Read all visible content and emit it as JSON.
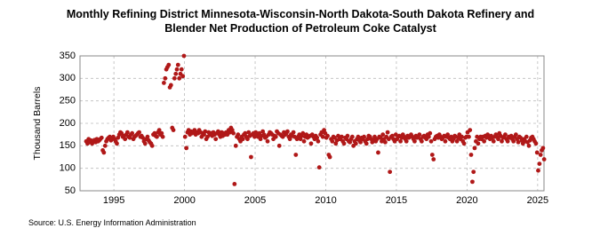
{
  "chart_data": {
    "type": "scatter",
    "title": [
      "Monthly Refining District Minnesota-Wisconsin-North Dakota-South Dakota Refinery and",
      "Blender Net Production of Petroleum Coke Catalyst"
    ],
    "y_label": "Thousand Barrels",
    "source": "Source: U.S. Energy Information Administration",
    "color": "#b01818",
    "grid": true,
    "xlim": [
      1992.6,
      2025.45
    ],
    "ylim": [
      50,
      350
    ],
    "xticks": [
      1995,
      2000,
      2005,
      2010,
      2015,
      2020,
      2025
    ],
    "yticks": [
      50,
      100,
      150,
      200,
      250,
      300,
      350
    ],
    "x": [
      1993.04,
      1993.13,
      1993.21,
      1993.29,
      1993.38,
      1993.46,
      1993.54,
      1993.63,
      1993.71,
      1993.79,
      1993.88,
      1993.96,
      1994.04,
      1994.13,
      1994.21,
      1994.29,
      1994.38,
      1994.46,
      1994.54,
      1994.63,
      1994.71,
      1994.79,
      1994.88,
      1994.96,
      1995.04,
      1995.13,
      1995.21,
      1995.29,
      1995.38,
      1995.46,
      1995.54,
      1995.63,
      1995.71,
      1995.79,
      1995.88,
      1995.96,
      1996.04,
      1996.13,
      1996.21,
      1996.29,
      1996.38,
      1996.46,
      1996.54,
      1996.63,
      1996.71,
      1996.79,
      1996.88,
      1996.96,
      1997.04,
      1997.13,
      1997.21,
      1997.29,
      1997.38,
      1997.46,
      1997.54,
      1997.63,
      1997.71,
      1997.79,
      1997.88,
      1997.96,
      1998.04,
      1998.13,
      1998.21,
      1998.29,
      1998.38,
      1998.46,
      1998.54,
      1998.63,
      1998.71,
      1998.79,
      1998.88,
      1998.96,
      1999.04,
      1999.13,
      1999.21,
      1999.29,
      1999.38,
      1999.46,
      1999.54,
      1999.63,
      1999.71,
      1999.79,
      1999.88,
      1999.96,
      2000.04,
      2000.13,
      2000.21,
      2000.29,
      2000.38,
      2000.46,
      2000.54,
      2000.63,
      2000.71,
      2000.79,
      2000.88,
      2000.96,
      2001.04,
      2001.13,
      2001.21,
      2001.29,
      2001.38,
      2001.46,
      2001.54,
      2001.63,
      2001.71,
      2001.79,
      2001.88,
      2001.96,
      2002.04,
      2002.13,
      2002.21,
      2002.29,
      2002.38,
      2002.46,
      2002.54,
      2002.63,
      2002.71,
      2002.79,
      2002.88,
      2002.96,
      2003.04,
      2003.13,
      2003.21,
      2003.29,
      2003.38,
      2003.46,
      2003.54,
      2003.63,
      2003.71,
      2003.79,
      2003.88,
      2003.96,
      2004.04,
      2004.13,
      2004.21,
      2004.29,
      2004.38,
      2004.46,
      2004.54,
      2004.63,
      2004.71,
      2004.79,
      2004.88,
      2004.96,
      2005.04,
      2005.13,
      2005.21,
      2005.29,
      2005.38,
      2005.46,
      2005.54,
      2005.63,
      2005.71,
      2005.79,
      2005.88,
      2005.96,
      2006.04,
      2006.13,
      2006.21,
      2006.29,
      2006.38,
      2006.46,
      2006.54,
      2006.63,
      2006.71,
      2006.79,
      2006.88,
      2006.96,
      2007.04,
      2007.13,
      2007.21,
      2007.29,
      2007.38,
      2007.46,
      2007.54,
      2007.63,
      2007.71,
      2007.79,
      2007.88,
      2007.96,
      2008.04,
      2008.13,
      2008.21,
      2008.29,
      2008.38,
      2008.46,
      2008.54,
      2008.63,
      2008.71,
      2008.79,
      2008.88,
      2008.96,
      2009.04,
      2009.13,
      2009.21,
      2009.29,
      2009.38,
      2009.46,
      2009.54,
      2009.63,
      2009.71,
      2009.79,
      2009.88,
      2009.96,
      2010.04,
      2010.13,
      2010.21,
      2010.29,
      2010.38,
      2010.46,
      2010.54,
      2010.63,
      2010.71,
      2010.79,
      2010.88,
      2010.96,
      2011.04,
      2011.13,
      2011.21,
      2011.29,
      2011.38,
      2011.46,
      2011.54,
      2011.63,
      2011.71,
      2011.79,
      2011.88,
      2011.96,
      2012.04,
      2012.13,
      2012.21,
      2012.29,
      2012.38,
      2012.46,
      2012.54,
      2012.63,
      2012.71,
      2012.79,
      2012.88,
      2012.96,
      2013.04,
      2013.13,
      2013.21,
      2013.29,
      2013.38,
      2013.46,
      2013.54,
      2013.63,
      2013.71,
      2013.79,
      2013.88,
      2013.96,
      2014.04,
      2014.13,
      2014.21,
      2014.29,
      2014.38,
      2014.46,
      2014.54,
      2014.63,
      2014.71,
      2014.79,
      2014.88,
      2014.96,
      2015.04,
      2015.13,
      2015.21,
      2015.29,
      2015.38,
      2015.46,
      2015.54,
      2015.63,
      2015.71,
      2015.79,
      2015.88,
      2015.96,
      2016.04,
      2016.13,
      2016.21,
      2016.29,
      2016.38,
      2016.46,
      2016.54,
      2016.63,
      2016.71,
      2016.79,
      2016.88,
      2016.96,
      2017.04,
      2017.13,
      2017.21,
      2017.29,
      2017.38,
      2017.46,
      2017.54,
      2017.63,
      2017.71,
      2017.79,
      2017.88,
      2017.96,
      2018.04,
      2018.13,
      2018.21,
      2018.29,
      2018.38,
      2018.46,
      2018.54,
      2018.63,
      2018.71,
      2018.79,
      2018.88,
      2018.96,
      2019.04,
      2019.13,
      2019.21,
      2019.29,
      2019.38,
      2019.46,
      2019.54,
      2019.63,
      2019.71,
      2019.79,
      2019.88,
      2019.96,
      2020.04,
      2020.13,
      2020.21,
      2020.29,
      2020.38,
      2020.46,
      2020.54,
      2020.63,
      2020.71,
      2020.79,
      2020.88,
      2020.96,
      2021.04,
      2021.13,
      2021.21,
      2021.29,
      2021.38,
      2021.46,
      2021.54,
      2021.63,
      2021.71,
      2021.79,
      2021.88,
      2021.96,
      2022.04,
      2022.13,
      2022.21,
      2022.29,
      2022.38,
      2022.46,
      2022.54,
      2022.63,
      2022.71,
      2022.79,
      2022.88,
      2022.96,
      2023.04,
      2023.13,
      2023.21,
      2023.29,
      2023.38,
      2023.46,
      2023.54,
      2023.63,
      2023.71,
      2023.79,
      2023.88,
      2023.96,
      2024.04,
      2024.13,
      2024.21,
      2024.29,
      2024.38,
      2024.46,
      2024.54,
      2024.63,
      2024.71,
      2024.79,
      2024.88,
      2024.96,
      2025.04,
      2025.13,
      2025.21,
      2025.29,
      2025.38,
      2025.46
    ],
    "values": [
      160,
      155,
      165,
      158,
      162,
      155,
      160,
      163,
      158,
      165,
      160,
      162,
      165,
      168,
      140,
      135,
      150,
      160,
      165,
      168,
      170,
      162,
      165,
      170,
      165,
      160,
      155,
      168,
      175,
      180,
      178,
      170,
      172,
      165,
      175,
      180,
      170,
      168,
      175,
      178,
      165,
      170,
      172,
      175,
      178,
      180,
      170,
      172,
      168,
      160,
      155,
      165,
      170,
      162,
      158,
      155,
      150,
      175,
      178,
      172,
      170,
      180,
      185,
      175,
      178,
      170,
      290,
      300,
      320,
      325,
      330,
      280,
      285,
      190,
      185,
      300,
      310,
      320,
      330,
      300,
      310,
      320,
      305,
      350,
      170,
      145,
      180,
      185,
      175,
      182,
      178,
      180,
      185,
      175,
      180,
      178,
      185,
      180,
      170,
      178,
      175,
      182,
      165,
      170,
      180,
      175,
      178,
      172,
      180,
      175,
      165,
      178,
      182,
      175,
      170,
      180,
      172,
      178,
      175,
      180,
      175,
      185,
      180,
      190,
      185,
      178,
      65,
      150,
      170,
      175,
      165,
      160,
      170,
      165,
      175,
      178,
      170,
      165,
      180,
      172,
      125,
      175,
      178,
      170,
      180,
      175,
      170,
      178,
      165,
      172,
      182,
      175,
      168,
      170,
      160,
      175,
      180,
      178,
      175,
      165,
      172,
      170,
      182,
      178,
      150,
      175,
      172,
      170,
      180,
      175,
      178,
      182,
      170,
      165,
      175,
      172,
      180,
      170,
      130,
      165,
      170,
      175,
      165,
      172,
      178,
      160,
      170,
      175,
      168,
      170,
      172,
      155,
      175,
      170,
      165,
      172,
      168,
      160,
      102,
      175,
      180,
      170,
      185,
      178,
      168,
      172,
      130,
      125,
      165,
      160,
      170,
      168,
      155,
      162,
      172,
      165,
      165,
      170,
      160,
      155,
      168,
      165,
      172,
      160,
      158,
      165,
      170,
      150,
      160,
      155,
      165,
      170,
      162,
      158,
      168,
      165,
      170,
      160,
      155,
      165,
      172,
      170,
      165,
      158,
      162,
      170,
      160,
      165,
      135,
      170,
      168,
      160,
      175,
      165,
      158,
      170,
      180,
      165,
      92,
      170,
      172,
      165,
      160,
      175,
      165,
      170,
      172,
      160,
      168,
      175,
      170,
      165,
      160,
      172,
      168,
      170,
      175,
      170,
      165,
      160,
      172,
      168,
      170,
      175,
      165,
      160,
      170,
      172,
      168,
      165,
      175,
      170,
      178,
      160,
      130,
      120,
      165,
      170,
      172,
      168,
      175,
      170,
      165,
      168,
      172,
      160,
      170,
      175,
      168,
      165,
      170,
      160,
      165,
      172,
      170,
      160,
      168,
      175,
      165,
      170,
      160,
      155,
      168,
      170,
      180,
      170,
      185,
      130,
      70,
      92,
      145,
      160,
      170,
      155,
      165,
      170,
      165,
      170,
      160,
      172,
      168,
      175,
      170,
      165,
      172,
      168,
      160,
      170,
      175,
      170,
      165,
      178,
      172,
      160,
      168,
      170,
      175,
      165,
      160,
      170,
      168,
      172,
      165,
      160,
      170,
      175,
      165,
      158,
      170,
      168,
      162,
      155,
      165,
      160,
      170,
      158,
      150,
      162,
      168,
      170,
      165,
      160,
      155,
      135,
      95,
      110,
      130,
      140,
      145,
      120
    ]
  }
}
